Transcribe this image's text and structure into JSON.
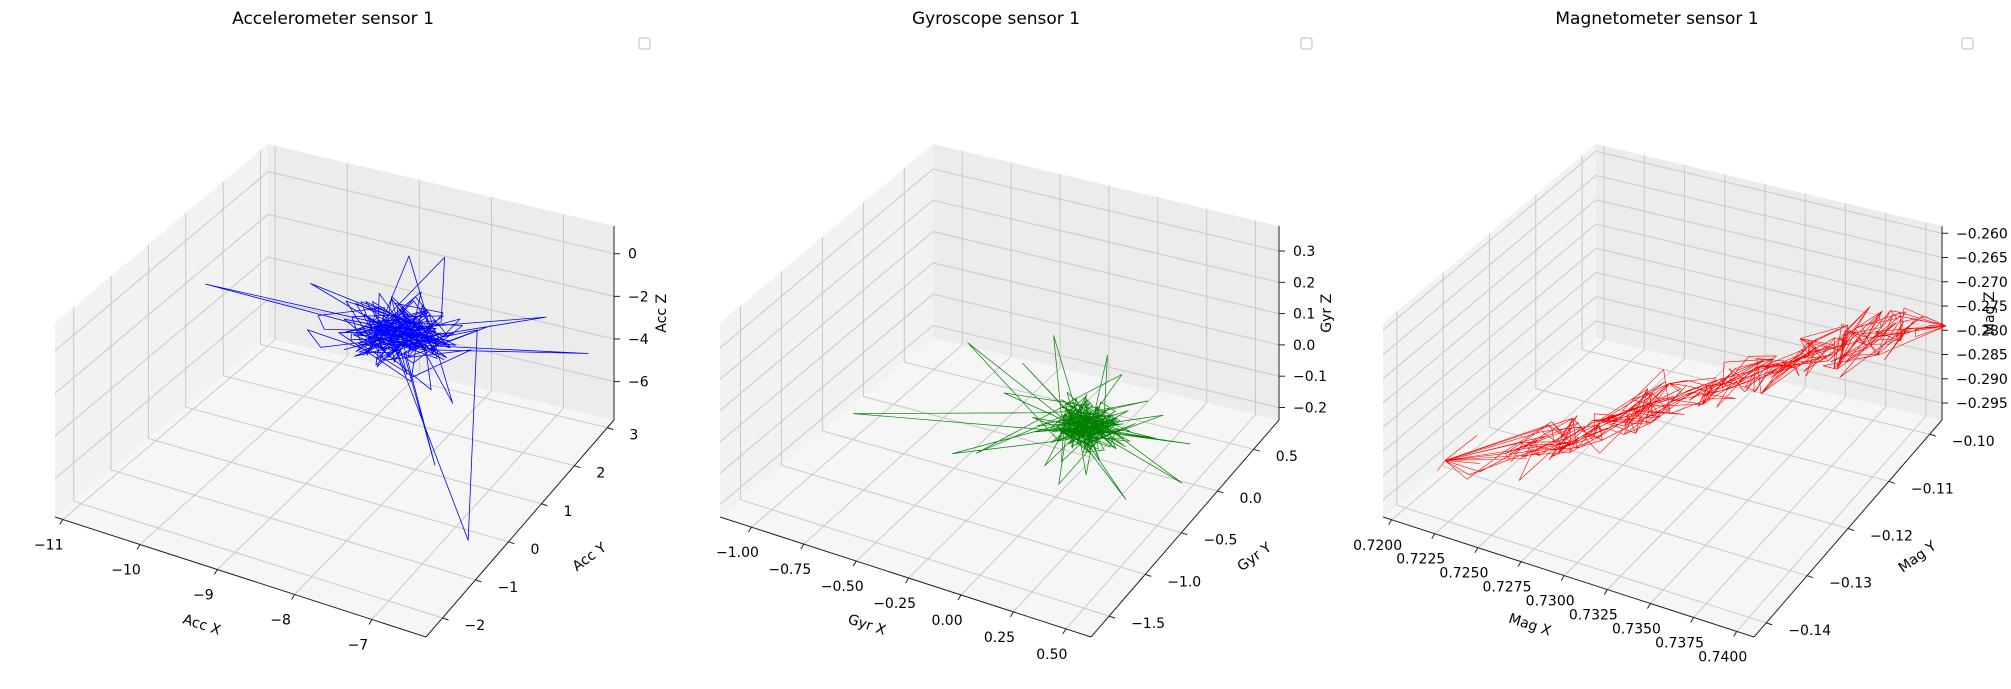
{
  "chart_data": [
    {
      "type": "line3d",
      "title": "Accelerometer sensor 1",
      "xlabel": "Acc X",
      "ylabel": "Acc Y",
      "zlabel": "Acc Z",
      "xticks": [
        -11,
        -10,
        -9,
        -8,
        -7
      ],
      "yticks": [
        -2,
        -1,
        0,
        1,
        2,
        3
      ],
      "zticks": [
        0,
        -2,
        -4,
        -6
      ],
      "xlim": [
        -11.1,
        -6.3
      ],
      "ylim": [
        -2.5,
        3.2
      ],
      "zlim": [
        -7.8,
        1.3
      ],
      "color": "#0000ff",
      "legend": "empty"
    },
    {
      "type": "line3d",
      "title": "Gyroscope sensor 1",
      "xlabel": "Gyr X",
      "ylabel": "Gyr Y",
      "zlabel": "Gyr Z",
      "xticks": [
        -1.0,
        -0.75,
        -0.5,
        -0.25,
        0.0,
        0.25,
        0.5
      ],
      "yticks": [
        -1.5,
        -1.0,
        -0.5,
        0.0,
        0.5
      ],
      "zticks": [
        0.3,
        0.2,
        0.1,
        0.0,
        -0.1,
        -0.2
      ],
      "tick_labels": {
        "x": [
          "−1.00",
          "−0.75",
          "−0.50",
          "−0.25",
          "0.00",
          "0.25",
          "0.50"
        ],
        "y": [
          "−1.5",
          "−1.0",
          "−0.5",
          "0.0",
          "0.5"
        ],
        "z": [
          "0.3",
          "0.2",
          "0.1",
          "0.0",
          "−0.1",
          "−0.2"
        ]
      },
      "xlim": [
        -1.15,
        0.62
      ],
      "ylim": [
        -1.75,
        0.85
      ],
      "zlim": [
        -0.24,
        0.38
      ],
      "color": "#008000",
      "legend": "empty"
    },
    {
      "type": "line3d",
      "title": "Magnetometer sensor 1",
      "xlabel": "Mag X",
      "ylabel": "Mag Y",
      "zlabel": "Mag Z",
      "xticks": [
        0.72,
        0.7225,
        0.725,
        0.7275,
        0.73,
        0.7325,
        0.735,
        0.7375,
        0.74
      ],
      "yticks": [
        -0.14,
        -0.13,
        -0.12,
        -0.11,
        -0.1
      ],
      "zticks": [
        -0.26,
        -0.265,
        -0.27,
        -0.275,
        -0.28,
        -0.285,
        -0.29,
        -0.295
      ],
      "tick_labels": {
        "x": [
          "0.7200",
          "0.7225",
          "0.7250",
          "0.7275",
          "0.7300",
          "0.7325",
          "0.7350",
          "0.7375",
          "0.7400"
        ],
        "y": [
          "−0.14",
          "−0.13",
          "−0.12",
          "−0.11",
          "−0.10"
        ],
        "z": [
          "−0.260",
          "−0.265",
          "−0.270",
          "−0.275",
          "−0.280",
          "−0.285",
          "−0.290",
          "−0.295"
        ]
      },
      "xlim": [
        0.7195,
        0.741
      ],
      "ylim": [
        -0.143,
        -0.097
      ],
      "zlim": [
        -0.2985,
        -0.2585
      ],
      "color": "#ff0000",
      "legend": "empty"
    }
  ]
}
